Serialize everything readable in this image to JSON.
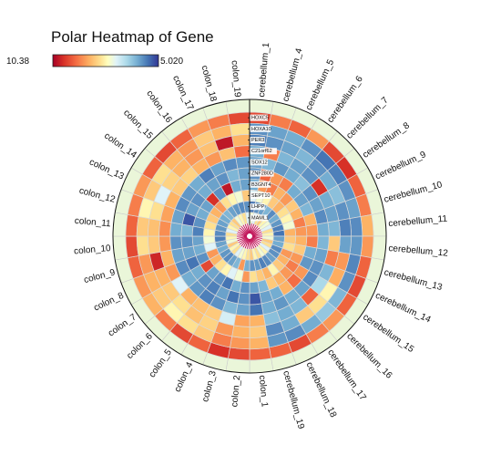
{
  "chart_data": {
    "type": "heatmap",
    "title": "Polar Heatmap of Gene",
    "colorbar": {
      "min_label": "10.38",
      "max_label": "5.020"
    },
    "columns": [
      "cerebellum_1",
      "cerebellum_4",
      "cerebellum_5",
      "cerebellum_6",
      "cerebellum_7",
      "cerebellum_8",
      "cerebellum_9",
      "cerebellum_10",
      "cerebellum_11",
      "cerebellum_12",
      "cerebellum_13",
      "cerebellum_14",
      "cerebellum_15",
      "cerebellum_16",
      "cerebellum_17",
      "cerebellum_18",
      "cerebellum_19",
      "colon_1",
      "colon_2",
      "colon_3",
      "colon_4",
      "colon_5",
      "colon_6",
      "colon_7",
      "colon_8",
      "colon_9",
      "colon_10",
      "colon_11",
      "colon_12",
      "colon_13",
      "colon_14",
      "colon_15",
      "colon_16",
      "colon_17",
      "colon_18",
      "colon_19"
    ],
    "genes": [
      "HOXC5",
      "HOXA10",
      "PER3",
      "C21orf62",
      "SOX12",
      "ZNF280D",
      "B3GNT4",
      "SEPT10",
      "LHPP",
      "MAML1"
    ],
    "values": [
      [
        0.15,
        0.25,
        0.2,
        0.3,
        0.15,
        0.1,
        0.2,
        0.25,
        0.35,
        0.3,
        0.2,
        0.15,
        0.2,
        0.3,
        0.25,
        0.15,
        0.2,
        0.2,
        0.15,
        0.1,
        0.2,
        0.15,
        0.25,
        0.35,
        0.3,
        0.2,
        0.15,
        0.2,
        0.25,
        0.3,
        0.2,
        0.15,
        0.2,
        0.3,
        0.25,
        0.15
      ],
      [
        0.85,
        0.82,
        0.8,
        0.85,
        0.9,
        0.88,
        0.85,
        0.82,
        0.86,
        0.84,
        0.87,
        0.85,
        0.78,
        0.74,
        0.8,
        0.86,
        0.84,
        0.35,
        0.3,
        0.25,
        0.4,
        0.45,
        0.5,
        0.4,
        0.35,
        0.3,
        0.45,
        0.4,
        0.5,
        0.4,
        0.45,
        0.35,
        0.3,
        0.4,
        0.35,
        0.45
      ],
      [
        0.88,
        0.85,
        0.82,
        0.78,
        0.85,
        0.8,
        0.76,
        0.85,
        0.88,
        0.82,
        0.3,
        0.34,
        0.5,
        0.45,
        0.4,
        0.8,
        0.86,
        0.4,
        0.35,
        0.3,
        0.42,
        0.38,
        0.45,
        0.4,
        0.35,
        0.08,
        0.4,
        0.38,
        0.45,
        0.6,
        0.42,
        0.35,
        0.3,
        0.38,
        0.05,
        0.35
      ],
      [
        0.8,
        0.25,
        0.78,
        0.82,
        0.85,
        0.1,
        0.8,
        0.82,
        0.78,
        0.4,
        0.25,
        0.78,
        0.7,
        0.2,
        0.78,
        0.8,
        0.76,
        0.35,
        0.32,
        0.62,
        0.4,
        0.38,
        0.35,
        0.6,
        0.3,
        0.35,
        0.3,
        0.28,
        0.32,
        0.35,
        0.4,
        0.42,
        0.35,
        0.3,
        0.38,
        0.22
      ],
      [
        0.82,
        0.78,
        0.84,
        0.8,
        0.76,
        0.85,
        0.82,
        0.86,
        0.8,
        0.78,
        0.82,
        0.85,
        0.86,
        0.82,
        0.8,
        0.84,
        0.8,
        0.9,
        0.82,
        0.78,
        0.85,
        0.88,
        0.84,
        0.8,
        0.86,
        0.82,
        0.85,
        0.8,
        0.82,
        0.86,
        0.84,
        0.8,
        0.88,
        0.82,
        0.86,
        0.84
      ],
      [
        0.85,
        0.2,
        0.3,
        0.25,
        0.8,
        0.82,
        0.78,
        0.35,
        0.3,
        0.25,
        0.8,
        0.84,
        0.3,
        0.22,
        0.35,
        0.8,
        0.82,
        0.95,
        0.85,
        0.9,
        0.82,
        0.88,
        0.85,
        0.8,
        0.9,
        0.82,
        0.85,
        0.78,
        0.95,
        0.82,
        0.85,
        0.8,
        0.82,
        0.85,
        0.78,
        0.82
      ],
      [
        0.8,
        0.3,
        0.25,
        0.35,
        0.3,
        0.4,
        0.35,
        0.25,
        0.3,
        0.35,
        0.4,
        0.3,
        0.25,
        0.3,
        0.35,
        0.4,
        0.78,
        0.82,
        0.85,
        0.8,
        0.9,
        0.85,
        0.82,
        0.15,
        0.85,
        0.8,
        0.82,
        0.88,
        0.85,
        0.8,
        0.82,
        0.1,
        0.85,
        0.05,
        0.8,
        0.82
      ],
      [
        0.6,
        0.55,
        0.5,
        0.4,
        0.35,
        0.45,
        0.5,
        0.55,
        0.35,
        0.4,
        0.45,
        0.3,
        0.35,
        0.4,
        0.5,
        0.35,
        0.4,
        0.45,
        0.3,
        0.55,
        0.6,
        0.5,
        0.45,
        0.35,
        0.3,
        0.6,
        0.55,
        0.5,
        0.45,
        0.4,
        0.35,
        0.3,
        0.45,
        0.5,
        0.55,
        0.4
      ],
      [
        0.9,
        0.85,
        0.82,
        0.78,
        0.86,
        0.8,
        0.84,
        0.88,
        0.9,
        0.82,
        0.8,
        0.86,
        0.85,
        0.82,
        0.86,
        0.88,
        0.84,
        0.85,
        0.8,
        0.3,
        0.78,
        0.82,
        0.86,
        0.84,
        0.8,
        0.82,
        0.88,
        0.86,
        0.84,
        0.82,
        0.8,
        0.78,
        0.82,
        0.84,
        0.86,
        0.85
      ],
      [
        0.55,
        0.6,
        0.45,
        0.4,
        0.5,
        0.55,
        0.6,
        0.45,
        0.5,
        0.55,
        0.4,
        0.45,
        0.6,
        0.5,
        0.55,
        0.45,
        0.5,
        0.4,
        0.45,
        0.5,
        0.55,
        0.6,
        0.45,
        0.5,
        0.4,
        0.55,
        0.5,
        0.45,
        0.6,
        0.5,
        0.45,
        0.4,
        0.55,
        0.5,
        0.45,
        0.6
      ]
    ]
  }
}
